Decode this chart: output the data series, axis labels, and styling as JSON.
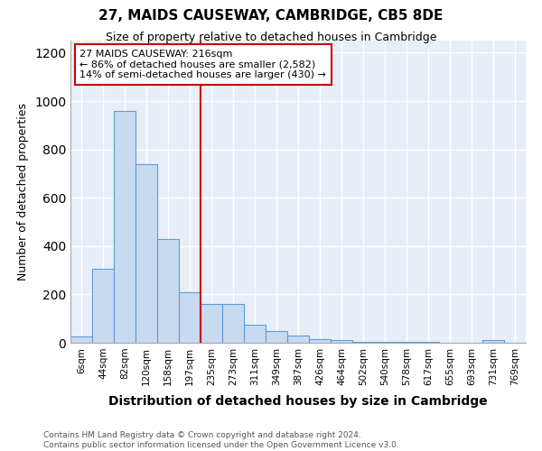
{
  "title": "27, MAIDS CAUSEWAY, CAMBRIDGE, CB5 8DE",
  "subtitle": "Size of property relative to detached houses in Cambridge",
  "xlabel": "Distribution of detached houses by size in Cambridge",
  "ylabel": "Number of detached properties",
  "categories": [
    "6sqm",
    "44sqm",
    "82sqm",
    "120sqm",
    "158sqm",
    "197sqm",
    "235sqm",
    "273sqm",
    "311sqm",
    "349sqm",
    "387sqm",
    "426sqm",
    "464sqm",
    "502sqm",
    "540sqm",
    "578sqm",
    "617sqm",
    "655sqm",
    "693sqm",
    "731sqm",
    "769sqm"
  ],
  "values": [
    25,
    305,
    960,
    740,
    430,
    210,
    160,
    160,
    75,
    50,
    30,
    15,
    10,
    5,
    5,
    5,
    5,
    0,
    0,
    10,
    0
  ],
  "bar_color": "#c8daf0",
  "bar_edge_color": "#5b9bd5",
  "vline_x": 6.0,
  "vline_color": "#cc0000",
  "annotation_text": "27 MAIDS CAUSEWAY: 216sqm\n← 86% of detached houses are smaller (2,582)\n14% of semi-detached houses are larger (430) →",
  "annotation_box_color": "#ffffff",
  "annotation_box_edge": "#cc0000",
  "ylim": [
    0,
    1250
  ],
  "yticks": [
    0,
    200,
    400,
    600,
    800,
    1000,
    1200
  ],
  "footer": "Contains HM Land Registry data © Crown copyright and database right 2024.\nContains public sector information licensed under the Open Government Licence v3.0.",
  "bg_color": "#ffffff",
  "plot_bg_color": "#e8eef8",
  "grid_color": "#ffffff"
}
